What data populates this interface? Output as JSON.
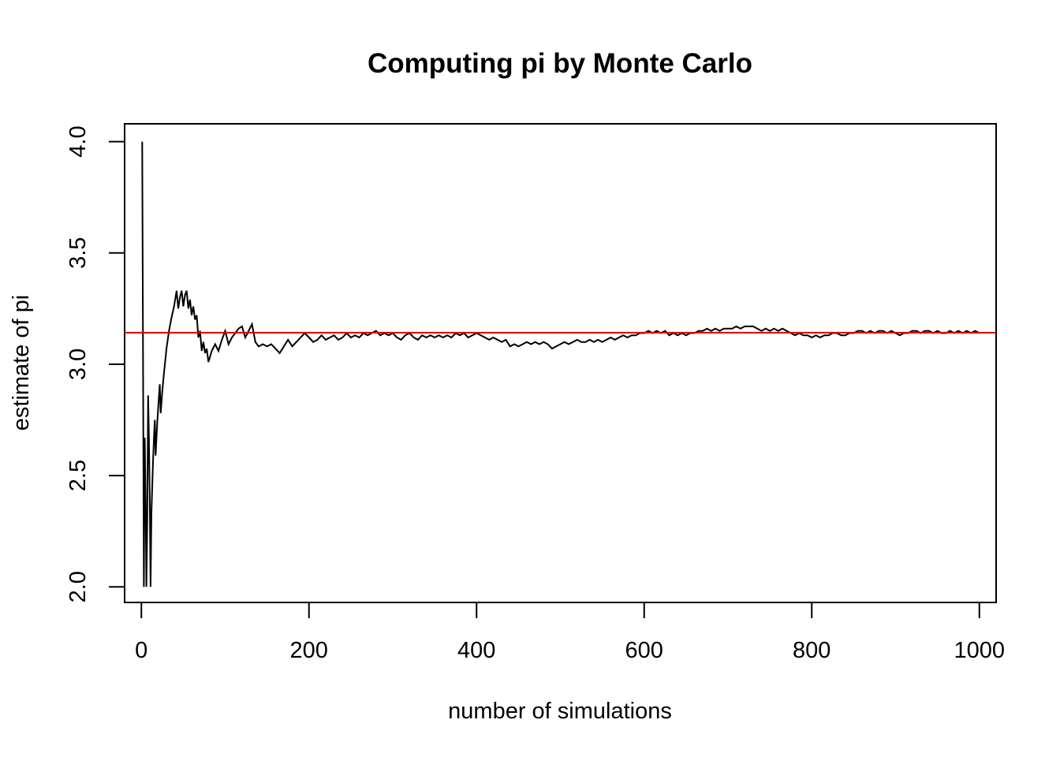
{
  "chart_data": {
    "type": "line",
    "title": "Computing pi by Monte Carlo",
    "xlabel": "number of simulations",
    "ylabel": "estimate of pi",
    "xlim": [
      -20,
      1020
    ],
    "ylim": [
      1.93,
      4.08
    ],
    "x_ticks": [
      0,
      200,
      400,
      600,
      800,
      1000
    ],
    "y_ticks": [
      2.0,
      2.5,
      3.0,
      3.5,
      4.0
    ],
    "x_tick_labels": [
      "0",
      "200",
      "400",
      "600",
      "800",
      "1000"
    ],
    "y_tick_labels": [
      "2.0",
      "2.5",
      "3.0",
      "3.5",
      "4.0"
    ],
    "grid": false,
    "legend": "none",
    "series": [
      {
        "color": "#000000",
        "points": [
          [
            1,
            4.0
          ],
          [
            2,
            3.0
          ],
          [
            3,
            2.0
          ],
          [
            4,
            2.67
          ],
          [
            5,
            2.4
          ],
          [
            6,
            2.0
          ],
          [
            7,
            2.29
          ],
          [
            8,
            2.86
          ],
          [
            9,
            2.67
          ],
          [
            10,
            2.4
          ],
          [
            11,
            2.0
          ],
          [
            12,
            2.33
          ],
          [
            13,
            2.46
          ],
          [
            14,
            2.57
          ],
          [
            15,
            2.67
          ],
          [
            16,
            2.75
          ],
          [
            17,
            2.59
          ],
          [
            18,
            2.67
          ],
          [
            19,
            2.74
          ],
          [
            20,
            2.8
          ],
          [
            21,
            2.86
          ],
          [
            22,
            2.91
          ],
          [
            23,
            2.78
          ],
          [
            24,
            2.83
          ],
          [
            25,
            2.88
          ],
          [
            27,
            2.96
          ],
          [
            30,
            3.07
          ],
          [
            33,
            3.15
          ],
          [
            36,
            3.21
          ],
          [
            39,
            3.26
          ],
          [
            42,
            3.33
          ],
          [
            44,
            3.25
          ],
          [
            46,
            3.3
          ],
          [
            48,
            3.33
          ],
          [
            50,
            3.26
          ],
          [
            52,
            3.31
          ],
          [
            54,
            3.33
          ],
          [
            56,
            3.25
          ],
          [
            58,
            3.29
          ],
          [
            60,
            3.22
          ],
          [
            62,
            3.26
          ],
          [
            64,
            3.2
          ],
          [
            66,
            3.22
          ],
          [
            68,
            3.12
          ],
          [
            70,
            3.15
          ],
          [
            72,
            3.06
          ],
          [
            74,
            3.1
          ],
          [
            76,
            3.05
          ],
          [
            78,
            3.07
          ],
          [
            80,
            3.01
          ],
          [
            84,
            3.06
          ],
          [
            88,
            3.09
          ],
          [
            92,
            3.06
          ],
          [
            96,
            3.11
          ],
          [
            100,
            3.15
          ],
          [
            104,
            3.09
          ],
          [
            108,
            3.12
          ],
          [
            112,
            3.14
          ],
          [
            116,
            3.16
          ],
          [
            120,
            3.17
          ],
          [
            124,
            3.12
          ],
          [
            128,
            3.15
          ],
          [
            132,
            3.18
          ],
          [
            136,
            3.1
          ],
          [
            140,
            3.08
          ],
          [
            145,
            3.09
          ],
          [
            150,
            3.08
          ],
          [
            155,
            3.09
          ],
          [
            160,
            3.07
          ],
          [
            165,
            3.05
          ],
          [
            170,
            3.08
          ],
          [
            175,
            3.11
          ],
          [
            180,
            3.08
          ],
          [
            185,
            3.1
          ],
          [
            190,
            3.12
          ],
          [
            195,
            3.14
          ],
          [
            200,
            3.12
          ],
          [
            205,
            3.1
          ],
          [
            210,
            3.11
          ],
          [
            215,
            3.13
          ],
          [
            220,
            3.11
          ],
          [
            225,
            3.12
          ],
          [
            230,
            3.13
          ],
          [
            235,
            3.11
          ],
          [
            240,
            3.12
          ],
          [
            245,
            3.14
          ],
          [
            250,
            3.12
          ],
          [
            255,
            3.13
          ],
          [
            260,
            3.12
          ],
          [
            265,
            3.14
          ],
          [
            270,
            3.13
          ],
          [
            275,
            3.14
          ],
          [
            280,
            3.15
          ],
          [
            285,
            3.13
          ],
          [
            290,
            3.14
          ],
          [
            295,
            3.13
          ],
          [
            300,
            3.14
          ],
          [
            305,
            3.12
          ],
          [
            310,
            3.11
          ],
          [
            315,
            3.13
          ],
          [
            320,
            3.14
          ],
          [
            325,
            3.12
          ],
          [
            330,
            3.11
          ],
          [
            335,
            3.13
          ],
          [
            340,
            3.12
          ],
          [
            345,
            3.13
          ],
          [
            350,
            3.12
          ],
          [
            355,
            3.13
          ],
          [
            360,
            3.12
          ],
          [
            365,
            3.13
          ],
          [
            370,
            3.12
          ],
          [
            375,
            3.14
          ],
          [
            380,
            3.13
          ],
          [
            385,
            3.14
          ],
          [
            390,
            3.12
          ],
          [
            395,
            3.13
          ],
          [
            400,
            3.14
          ],
          [
            405,
            3.13
          ],
          [
            410,
            3.12
          ],
          [
            415,
            3.11
          ],
          [
            420,
            3.12
          ],
          [
            425,
            3.11
          ],
          [
            430,
            3.1
          ],
          [
            435,
            3.11
          ],
          [
            440,
            3.08
          ],
          [
            445,
            3.09
          ],
          [
            450,
            3.08
          ],
          [
            455,
            3.09
          ],
          [
            460,
            3.1
          ],
          [
            465,
            3.09
          ],
          [
            470,
            3.1
          ],
          [
            475,
            3.09
          ],
          [
            480,
            3.1
          ],
          [
            485,
            3.09
          ],
          [
            490,
            3.07
          ],
          [
            495,
            3.08
          ],
          [
            500,
            3.09
          ],
          [
            505,
            3.1
          ],
          [
            510,
            3.09
          ],
          [
            515,
            3.1
          ],
          [
            520,
            3.11
          ],
          [
            525,
            3.1
          ],
          [
            530,
            3.1
          ],
          [
            535,
            3.11
          ],
          [
            540,
            3.1
          ],
          [
            545,
            3.11
          ],
          [
            550,
            3.1
          ],
          [
            555,
            3.11
          ],
          [
            560,
            3.12
          ],
          [
            565,
            3.11
          ],
          [
            570,
            3.12
          ],
          [
            575,
            3.13
          ],
          [
            580,
            3.12
          ],
          [
            585,
            3.13
          ],
          [
            590,
            3.13
          ],
          [
            595,
            3.14
          ],
          [
            600,
            3.14
          ],
          [
            605,
            3.15
          ],
          [
            610,
            3.14
          ],
          [
            615,
            3.15
          ],
          [
            620,
            3.14
          ],
          [
            625,
            3.15
          ],
          [
            630,
            3.13
          ],
          [
            635,
            3.14
          ],
          [
            640,
            3.13
          ],
          [
            645,
            3.14
          ],
          [
            650,
            3.13
          ],
          [
            655,
            3.14
          ],
          [
            660,
            3.14
          ],
          [
            665,
            3.15
          ],
          [
            670,
            3.15
          ],
          [
            675,
            3.16
          ],
          [
            680,
            3.15
          ],
          [
            685,
            3.16
          ],
          [
            690,
            3.15
          ],
          [
            695,
            3.16
          ],
          [
            700,
            3.16
          ],
          [
            705,
            3.16
          ],
          [
            710,
            3.17
          ],
          [
            715,
            3.16
          ],
          [
            720,
            3.17
          ],
          [
            725,
            3.17
          ],
          [
            730,
            3.17
          ],
          [
            735,
            3.16
          ],
          [
            740,
            3.15
          ],
          [
            745,
            3.16
          ],
          [
            750,
            3.15
          ],
          [
            755,
            3.16
          ],
          [
            760,
            3.15
          ],
          [
            765,
            3.16
          ],
          [
            770,
            3.15
          ],
          [
            775,
            3.14
          ],
          [
            780,
            3.13
          ],
          [
            785,
            3.14
          ],
          [
            790,
            3.13
          ],
          [
            795,
            3.13
          ],
          [
            800,
            3.12
          ],
          [
            805,
            3.13
          ],
          [
            810,
            3.12
          ],
          [
            815,
            3.13
          ],
          [
            820,
            3.13
          ],
          [
            825,
            3.14
          ],
          [
            830,
            3.14
          ],
          [
            835,
            3.13
          ],
          [
            840,
            3.13
          ],
          [
            845,
            3.14
          ],
          [
            850,
            3.14
          ],
          [
            855,
            3.15
          ],
          [
            860,
            3.15
          ],
          [
            865,
            3.14
          ],
          [
            870,
            3.15
          ],
          [
            875,
            3.14
          ],
          [
            880,
            3.15
          ],
          [
            885,
            3.15
          ],
          [
            890,
            3.14
          ],
          [
            895,
            3.15
          ],
          [
            900,
            3.14
          ],
          [
            905,
            3.13
          ],
          [
            910,
            3.14
          ],
          [
            915,
            3.14
          ],
          [
            920,
            3.15
          ],
          [
            925,
            3.15
          ],
          [
            930,
            3.14
          ],
          [
            935,
            3.15
          ],
          [
            940,
            3.15
          ],
          [
            945,
            3.14
          ],
          [
            950,
            3.15
          ],
          [
            955,
            3.14
          ],
          [
            960,
            3.14
          ],
          [
            965,
            3.15
          ],
          [
            970,
            3.14
          ],
          [
            975,
            3.15
          ],
          [
            980,
            3.14
          ],
          [
            985,
            3.15
          ],
          [
            990,
            3.14
          ],
          [
            995,
            3.15
          ],
          [
            1000,
            3.14
          ]
        ]
      }
    ],
    "reference_line": {
      "y": 3.14159,
      "color": "#e00000"
    }
  }
}
